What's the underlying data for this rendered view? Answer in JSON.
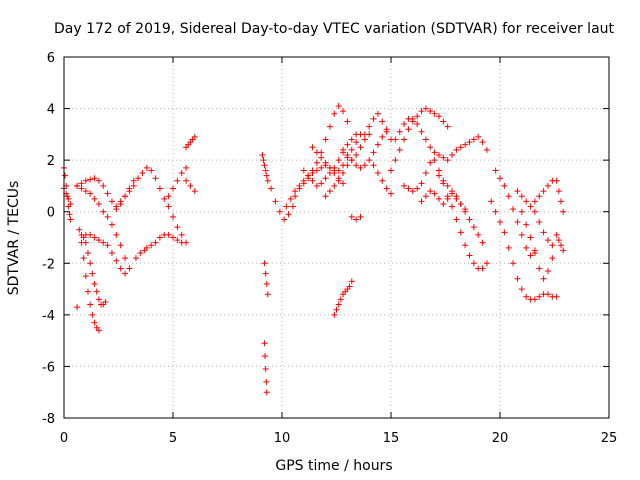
{
  "chart_data": {
    "type": "scatter",
    "title": "Day 172 of 2019, Sidereal Day-to-day VTEC variation (SDTVAR) for receiver laut",
    "xlabel": "GPS time / hours",
    "ylabel": "SDTVAR / TECUs",
    "xlim": [
      0,
      25
    ],
    "ylim": [
      -8,
      6
    ],
    "xticks": [
      0,
      5,
      10,
      15,
      20,
      25
    ],
    "yticks": [
      -8,
      -6,
      -4,
      -2,
      0,
      2,
      4,
      6
    ],
    "grid": true,
    "marker": "+",
    "color": "#ff0000",
    "series": [
      {
        "name": "s1",
        "x": [
          0.0,
          0.05,
          0.1,
          0.15,
          0.2,
          0.25,
          0.3
        ],
        "y": [
          1.7,
          1.4,
          1.0,
          0.6,
          0.2,
          -0.1,
          -0.3
        ]
      },
      {
        "name": "s2",
        "x": [
          0.0,
          0.1,
          0.2,
          0.3
        ],
        "y": [
          0.9,
          0.7,
          0.5,
          0.3
        ]
      },
      {
        "name": "s3",
        "x": [
          0.6,
          0.8,
          1.0,
          1.2,
          1.4,
          1.6,
          1.8,
          2.0,
          2.2,
          2.4,
          2.6,
          2.8,
          3.0
        ],
        "y": [
          1.0,
          0.9,
          0.8,
          0.7,
          0.5,
          0.3,
          0.0,
          -0.2,
          -0.5,
          -0.9,
          -1.3,
          -1.8,
          -2.2
        ]
      },
      {
        "name": "s4",
        "x": [
          0.6,
          0.8,
          1.0,
          1.2,
          1.4,
          1.6,
          1.8,
          2.0,
          2.2,
          2.4,
          2.6,
          2.8,
          3.0,
          3.2
        ],
        "y": [
          1.0,
          1.1,
          1.2,
          1.25,
          1.3,
          1.2,
          1.0,
          0.7,
          0.4,
          0.1,
          0.3,
          0.6,
          0.9,
          1.2
        ]
      },
      {
        "name": "s5",
        "x": [
          0.7,
          0.8,
          0.9,
          1.0,
          1.1,
          1.2,
          1.3,
          1.4,
          1.5,
          1.6
        ],
        "y": [
          -0.7,
          -1.2,
          -1.8,
          -2.5,
          -3.1,
          -3.6,
          -4.0,
          -4.3,
          -4.5,
          -4.6
        ]
      },
      {
        "name": "s6",
        "x": [
          0.8,
          0.9,
          1.0,
          1.1,
          1.2,
          1.3,
          1.4,
          1.5,
          1.6,
          1.7,
          1.8,
          1.9
        ],
        "y": [
          -0.9,
          -1.0,
          -1.2,
          -1.6,
          -2.0,
          -2.4,
          -2.8,
          -3.1,
          -3.4,
          -3.6,
          -3.6,
          -3.5
        ]
      },
      {
        "name": "s7",
        "x": [
          1.0,
          1.2,
          1.4,
          1.6,
          1.8,
          2.0,
          2.2,
          2.4,
          2.6,
          2.8
        ],
        "y": [
          -0.9,
          -0.9,
          -1.0,
          -1.1,
          -1.2,
          -1.3,
          -1.6,
          -1.9,
          -2.2,
          -2.4
        ]
      },
      {
        "name": "s8",
        "x": [
          0.6
        ],
        "y": [
          -3.7
        ]
      },
      {
        "name": "s9",
        "x": [
          2.4,
          2.6,
          2.8,
          3.0,
          3.2,
          3.4,
          3.6,
          3.8,
          4.0,
          4.2,
          4.4,
          4.6,
          4.8,
          5.0,
          5.2,
          5.4
        ],
        "y": [
          0.2,
          0.4,
          0.6,
          0.8,
          1.0,
          1.3,
          1.5,
          1.7,
          1.6,
          1.3,
          0.9,
          0.5,
          0.2,
          -0.2,
          -0.6,
          -0.9
        ]
      },
      {
        "name": "s10",
        "x": [
          3.3,
          3.5,
          3.7
        ],
        "y": [
          -1.8,
          -1.6,
          -1.5
        ]
      },
      {
        "name": "s11",
        "x": [
          3.8,
          4.0,
          4.2,
          4.4,
          4.6,
          4.8,
          5.0,
          5.2,
          5.4,
          5.6
        ],
        "y": [
          -1.4,
          -1.3,
          -1.2,
          -1.0,
          -0.9,
          -0.9,
          -1.0,
          -1.1,
          -1.2,
          -1.2
        ]
      },
      {
        "name": "s12",
        "x": [
          4.8,
          5.0,
          5.2,
          5.4,
          5.6
        ],
        "y": [
          0.6,
          0.9,
          1.2,
          1.5,
          1.7
        ]
      },
      {
        "name": "s13",
        "x": [
          5.6,
          5.7,
          5.8,
          5.9,
          6.0
        ],
        "y": [
          2.5,
          2.6,
          2.7,
          2.8,
          2.9
        ]
      },
      {
        "name": "s14",
        "x": [
          5.6,
          5.8,
          6.0
        ],
        "y": [
          1.2,
          1.0,
          0.8
        ]
      },
      {
        "name": "s15",
        "x": [
          9.1,
          9.15,
          9.2,
          9.25,
          9.3,
          9.35
        ],
        "y": [
          2.2,
          2.0,
          1.8,
          1.6,
          1.4,
          1.2
        ]
      },
      {
        "name": "s16",
        "x": [
          9.2,
          9.25,
          9.3,
          9.35
        ],
        "y": [
          -2.0,
          -2.4,
          -2.8,
          -3.2
        ]
      },
      {
        "name": "s17",
        "x": [
          9.2,
          9.22,
          9.25,
          9.28,
          9.3
        ],
        "y": [
          -5.1,
          -5.6,
          -6.1,
          -6.6,
          -7.0
        ]
      },
      {
        "name": "s18",
        "x": [
          9.5,
          9.7,
          9.9,
          10.1,
          10.3,
          10.5
        ],
        "y": [
          0.9,
          0.4,
          0.0,
          -0.3,
          -0.1,
          0.2
        ]
      },
      {
        "name": "s19",
        "x": [
          10.2,
          10.4,
          10.6,
          10.8,
          11.0,
          11.2,
          11.4,
          11.6,
          11.8,
          12.0,
          12.2,
          12.4,
          12.6,
          12.8,
          13.0
        ],
        "y": [
          0.2,
          0.5,
          0.8,
          1.0,
          1.2,
          1.4,
          1.6,
          1.9,
          2.3,
          2.8,
          3.3,
          3.8,
          4.1,
          3.9,
          3.5
        ]
      },
      {
        "name": "s20",
        "x": [
          10.6,
          10.8,
          11.0,
          11.2,
          11.4,
          11.6,
          11.8,
          12.0,
          12.2,
          12.4,
          12.6,
          12.8,
          13.0,
          13.2,
          13.4,
          13.6
        ],
        "y": [
          0.6,
          0.9,
          1.1,
          1.3,
          1.5,
          1.6,
          1.7,
          1.8,
          1.7,
          1.6,
          1.6,
          1.8,
          2.1,
          2.4,
          2.7,
          3.0
        ]
      },
      {
        "name": "s21",
        "x": [
          11.0,
          11.2,
          11.4,
          11.6,
          11.8,
          12.0,
          12.2,
          12.4,
          12.6,
          12.8,
          13.0,
          13.2,
          13.4
        ],
        "y": [
          1.6,
          1.4,
          1.2,
          1.0,
          1.1,
          1.3,
          1.5,
          1.7,
          2.0,
          2.3,
          2.6,
          2.8,
          3.0
        ]
      },
      {
        "name": "s22",
        "x": [
          11.4,
          11.6,
          11.8,
          12.0,
          12.2,
          12.4,
          12.6,
          12.8
        ],
        "y": [
          2.5,
          2.3,
          2.1,
          1.9,
          1.7,
          1.5,
          1.3,
          1.1
        ]
      },
      {
        "name": "s23",
        "x": [
          12.0,
          12.2,
          12.4,
          12.6,
          12.8,
          13.0,
          13.2,
          13.4,
          13.6,
          13.8,
          14.0
        ],
        "y": [
          0.6,
          0.8,
          1.0,
          1.2,
          1.5,
          1.8,
          2.0,
          2.2,
          2.5,
          2.8,
          3.0
        ]
      },
      {
        "name": "s24",
        "x": [
          12.8,
          13.0,
          13.2,
          13.4,
          13.6,
          13.8,
          14.0,
          14.2,
          14.4,
          14.6,
          14.8
        ],
        "y": [
          2.4,
          2.2,
          2.0,
          1.8,
          1.7,
          1.8,
          2.0,
          2.3,
          2.6,
          2.9,
          3.2
        ]
      },
      {
        "name": "s25",
        "x": [
          13.8,
          14.0,
          14.2,
          14.4,
          14.6,
          14.8,
          15.0
        ],
        "y": [
          3.0,
          3.3,
          3.6,
          3.8,
          3.5,
          3.1,
          2.8
        ]
      },
      {
        "name": "s26",
        "x": [
          14.2,
          14.4,
          14.6,
          14.8,
          15.0
        ],
        "y": [
          1.8,
          1.5,
          1.2,
          0.9,
          0.7
        ]
      },
      {
        "name": "s27",
        "x": [
          12.4,
          12.5,
          12.6,
          12.7,
          12.8,
          12.9,
          13.0,
          13.1,
          13.2
        ],
        "y": [
          -4.0,
          -3.8,
          -3.6,
          -3.4,
          -3.2,
          -3.1,
          -3.0,
          -2.9,
          -2.7
        ]
      },
      {
        "name": "s28",
        "x": [
          13.2,
          13.4,
          13.6
        ],
        "y": [
          -0.2,
          -0.3,
          -0.2
        ]
      },
      {
        "name": "s29",
        "x": [
          15.0,
          15.2,
          15.4,
          15.6,
          15.8,
          16.0,
          16.2,
          16.4,
          16.6,
          16.8,
          17.0,
          17.2,
          17.4,
          17.6
        ],
        "y": [
          1.6,
          2.0,
          2.4,
          2.8,
          3.2,
          3.5,
          3.7,
          3.9,
          4.0,
          3.9,
          3.8,
          3.7,
          3.5,
          3.3
        ]
      },
      {
        "name": "s30",
        "x": [
          15.2,
          15.4,
          15.6,
          15.8,
          16.0,
          16.2,
          16.4,
          16.6,
          16.8,
          17.0,
          17.2,
          17.4,
          17.6,
          17.8,
          18.0,
          18.2,
          18.4,
          18.6,
          18.8,
          19.0,
          19.2,
          19.4
        ],
        "y": [
          2.8,
          3.1,
          3.4,
          3.6,
          3.6,
          3.4,
          3.1,
          2.8,
          2.5,
          2.3,
          2.2,
          2.1,
          2.0,
          2.2,
          2.4,
          2.5,
          2.6,
          2.7,
          2.8,
          2.9,
          2.7,
          2.4
        ]
      },
      {
        "name": "s31",
        "x": [
          15.6,
          15.8,
          16.0,
          16.2,
          16.4,
          16.6,
          16.8,
          17.0,
          17.2,
          17.4,
          17.6,
          17.8,
          18.0,
          18.2,
          18.4,
          18.6,
          18.8,
          19.0,
          19.2,
          19.4
        ],
        "y": [
          1.0,
          0.9,
          0.8,
          0.9,
          1.1,
          1.5,
          1.9,
          2.0,
          1.6,
          1.1,
          0.6,
          0.2,
          -0.3,
          -0.8,
          -1.3,
          -1.7,
          -2.0,
          -2.2,
          -2.2,
          -2.0
        ]
      },
      {
        "name": "s32",
        "x": [
          16.4,
          16.6,
          16.8,
          17.0,
          17.2,
          17.4,
          17.6,
          17.8,
          18.0,
          18.2,
          18.4
        ],
        "y": [
          0.4,
          0.6,
          0.8,
          0.7,
          0.5,
          0.3,
          0.5,
          0.7,
          0.5,
          0.3,
          0.1
        ]
      },
      {
        "name": "s33",
        "x": [
          17.2,
          17.4,
          17.6,
          17.8,
          18.0,
          18.2,
          18.4,
          18.6,
          18.8,
          19.0,
          19.2
        ],
        "y": [
          1.4,
          1.2,
          1.0,
          0.8,
          0.6,
          0.3,
          0.0,
          -0.3,
          -0.6,
          -0.9,
          -1.2
        ]
      },
      {
        "name": "s34",
        "x": [
          19.8,
          20.0,
          20.2,
          20.4,
          20.6,
          20.8,
          21.0,
          21.2,
          21.4,
          21.6
        ],
        "y": [
          1.6,
          1.3,
          1.0,
          0.6,
          0.1,
          -0.4,
          -0.9,
          -1.4,
          -1.7,
          -1.5
        ]
      },
      {
        "name": "s35",
        "x": [
          19.6,
          19.8,
          20.0,
          20.2,
          20.4,
          20.6,
          20.8,
          21.0,
          21.2,
          21.4,
          21.6,
          21.8,
          22.0,
          22.2,
          22.4,
          22.6
        ],
        "y": [
          0.4,
          0.0,
          -0.4,
          -0.8,
          -1.4,
          -2.0,
          -2.6,
          -3.0,
          -3.3,
          -3.4,
          -3.4,
          -3.3,
          -3.2,
          -3.2,
          -3.3,
          -3.3
        ]
      },
      {
        "name": "s36",
        "x": [
          20.8,
          21.0,
          21.2,
          21.4,
          21.6,
          21.8,
          22.0,
          22.2,
          22.4
        ],
        "y": [
          0.8,
          0.6,
          0.4,
          0.2,
          0.0,
          -0.4,
          -0.8,
          -1.1,
          -1.3
        ]
      },
      {
        "name": "s37",
        "x": [
          21.0,
          21.2,
          21.4,
          21.6,
          21.8,
          22.0,
          22.2,
          22.4
        ],
        "y": [
          0.0,
          -0.5,
          -1.0,
          -1.6,
          -2.2,
          -2.6,
          -2.3,
          -1.8
        ]
      },
      {
        "name": "s38",
        "x": [
          21.6,
          21.8,
          22.0,
          22.2,
          22.4
        ],
        "y": [
          0.4,
          0.6,
          0.8,
          1.0,
          1.2
        ]
      },
      {
        "name": "s39",
        "x": [
          22.6,
          22.7,
          22.8,
          22.9
        ],
        "y": [
          1.2,
          0.8,
          0.4,
          0.0
        ]
      },
      {
        "name": "s40",
        "x": [
          22.6,
          22.7,
          22.8,
          22.9
        ],
        "y": [
          -0.9,
          -1.1,
          -1.3,
          -1.5
        ]
      }
    ]
  }
}
